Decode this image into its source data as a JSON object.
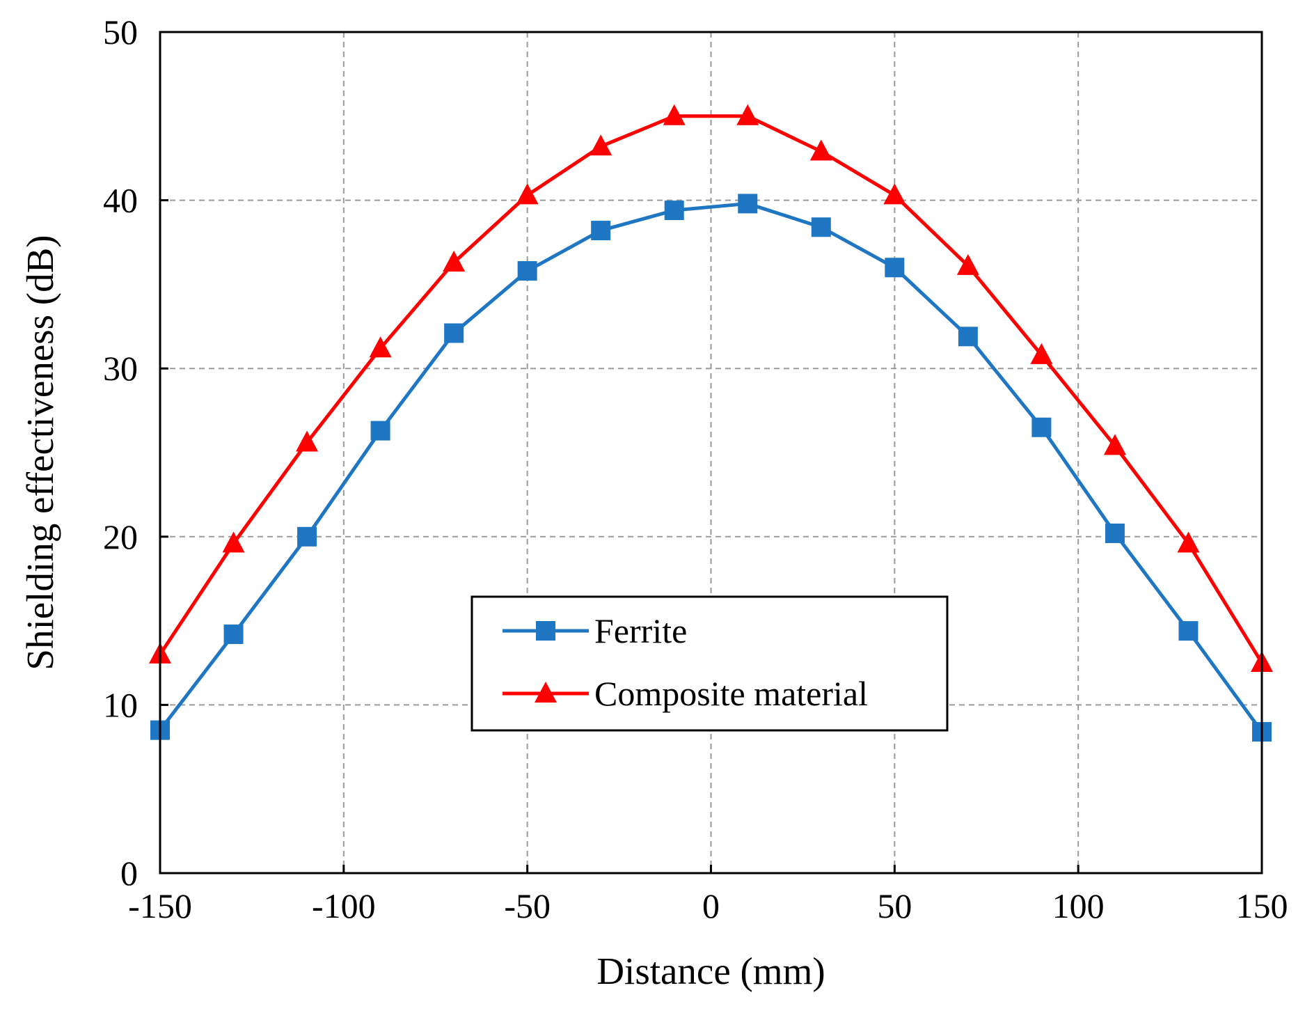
{
  "chart_data": {
    "type": "line",
    "title": "",
    "xlabel": "Distance (mm)",
    "ylabel": "Shielding effectiveness (dB)",
    "xlim": [
      -150,
      150
    ],
    "ylim": [
      0,
      50
    ],
    "xticks": [
      -150,
      -100,
      -50,
      0,
      50,
      100,
      150
    ],
    "yticks": [
      0,
      10,
      20,
      30,
      40,
      50
    ],
    "grid": true,
    "legend_position": "center-bottom",
    "x": [
      -150,
      -130,
      -110,
      -90,
      -70,
      -50,
      -30,
      -10,
      10,
      30,
      50,
      70,
      90,
      110,
      130,
      150
    ],
    "series": [
      {
        "name": "Ferrite",
        "color": "#1f77c4",
        "marker": "square",
        "values": [
          8.5,
          14.2,
          20.0,
          26.3,
          32.1,
          35.8,
          38.2,
          39.4,
          39.8,
          38.4,
          36.0,
          31.9,
          26.5,
          20.2,
          14.4,
          8.4
        ]
      },
      {
        "name": "Composite material",
        "color": "#ff0000",
        "marker": "triangle",
        "values": [
          13.0,
          19.6,
          25.6,
          31.2,
          36.3,
          40.3,
          43.2,
          45.0,
          45.0,
          42.9,
          40.3,
          36.1,
          30.8,
          25.4,
          19.6,
          12.5
        ]
      }
    ]
  }
}
